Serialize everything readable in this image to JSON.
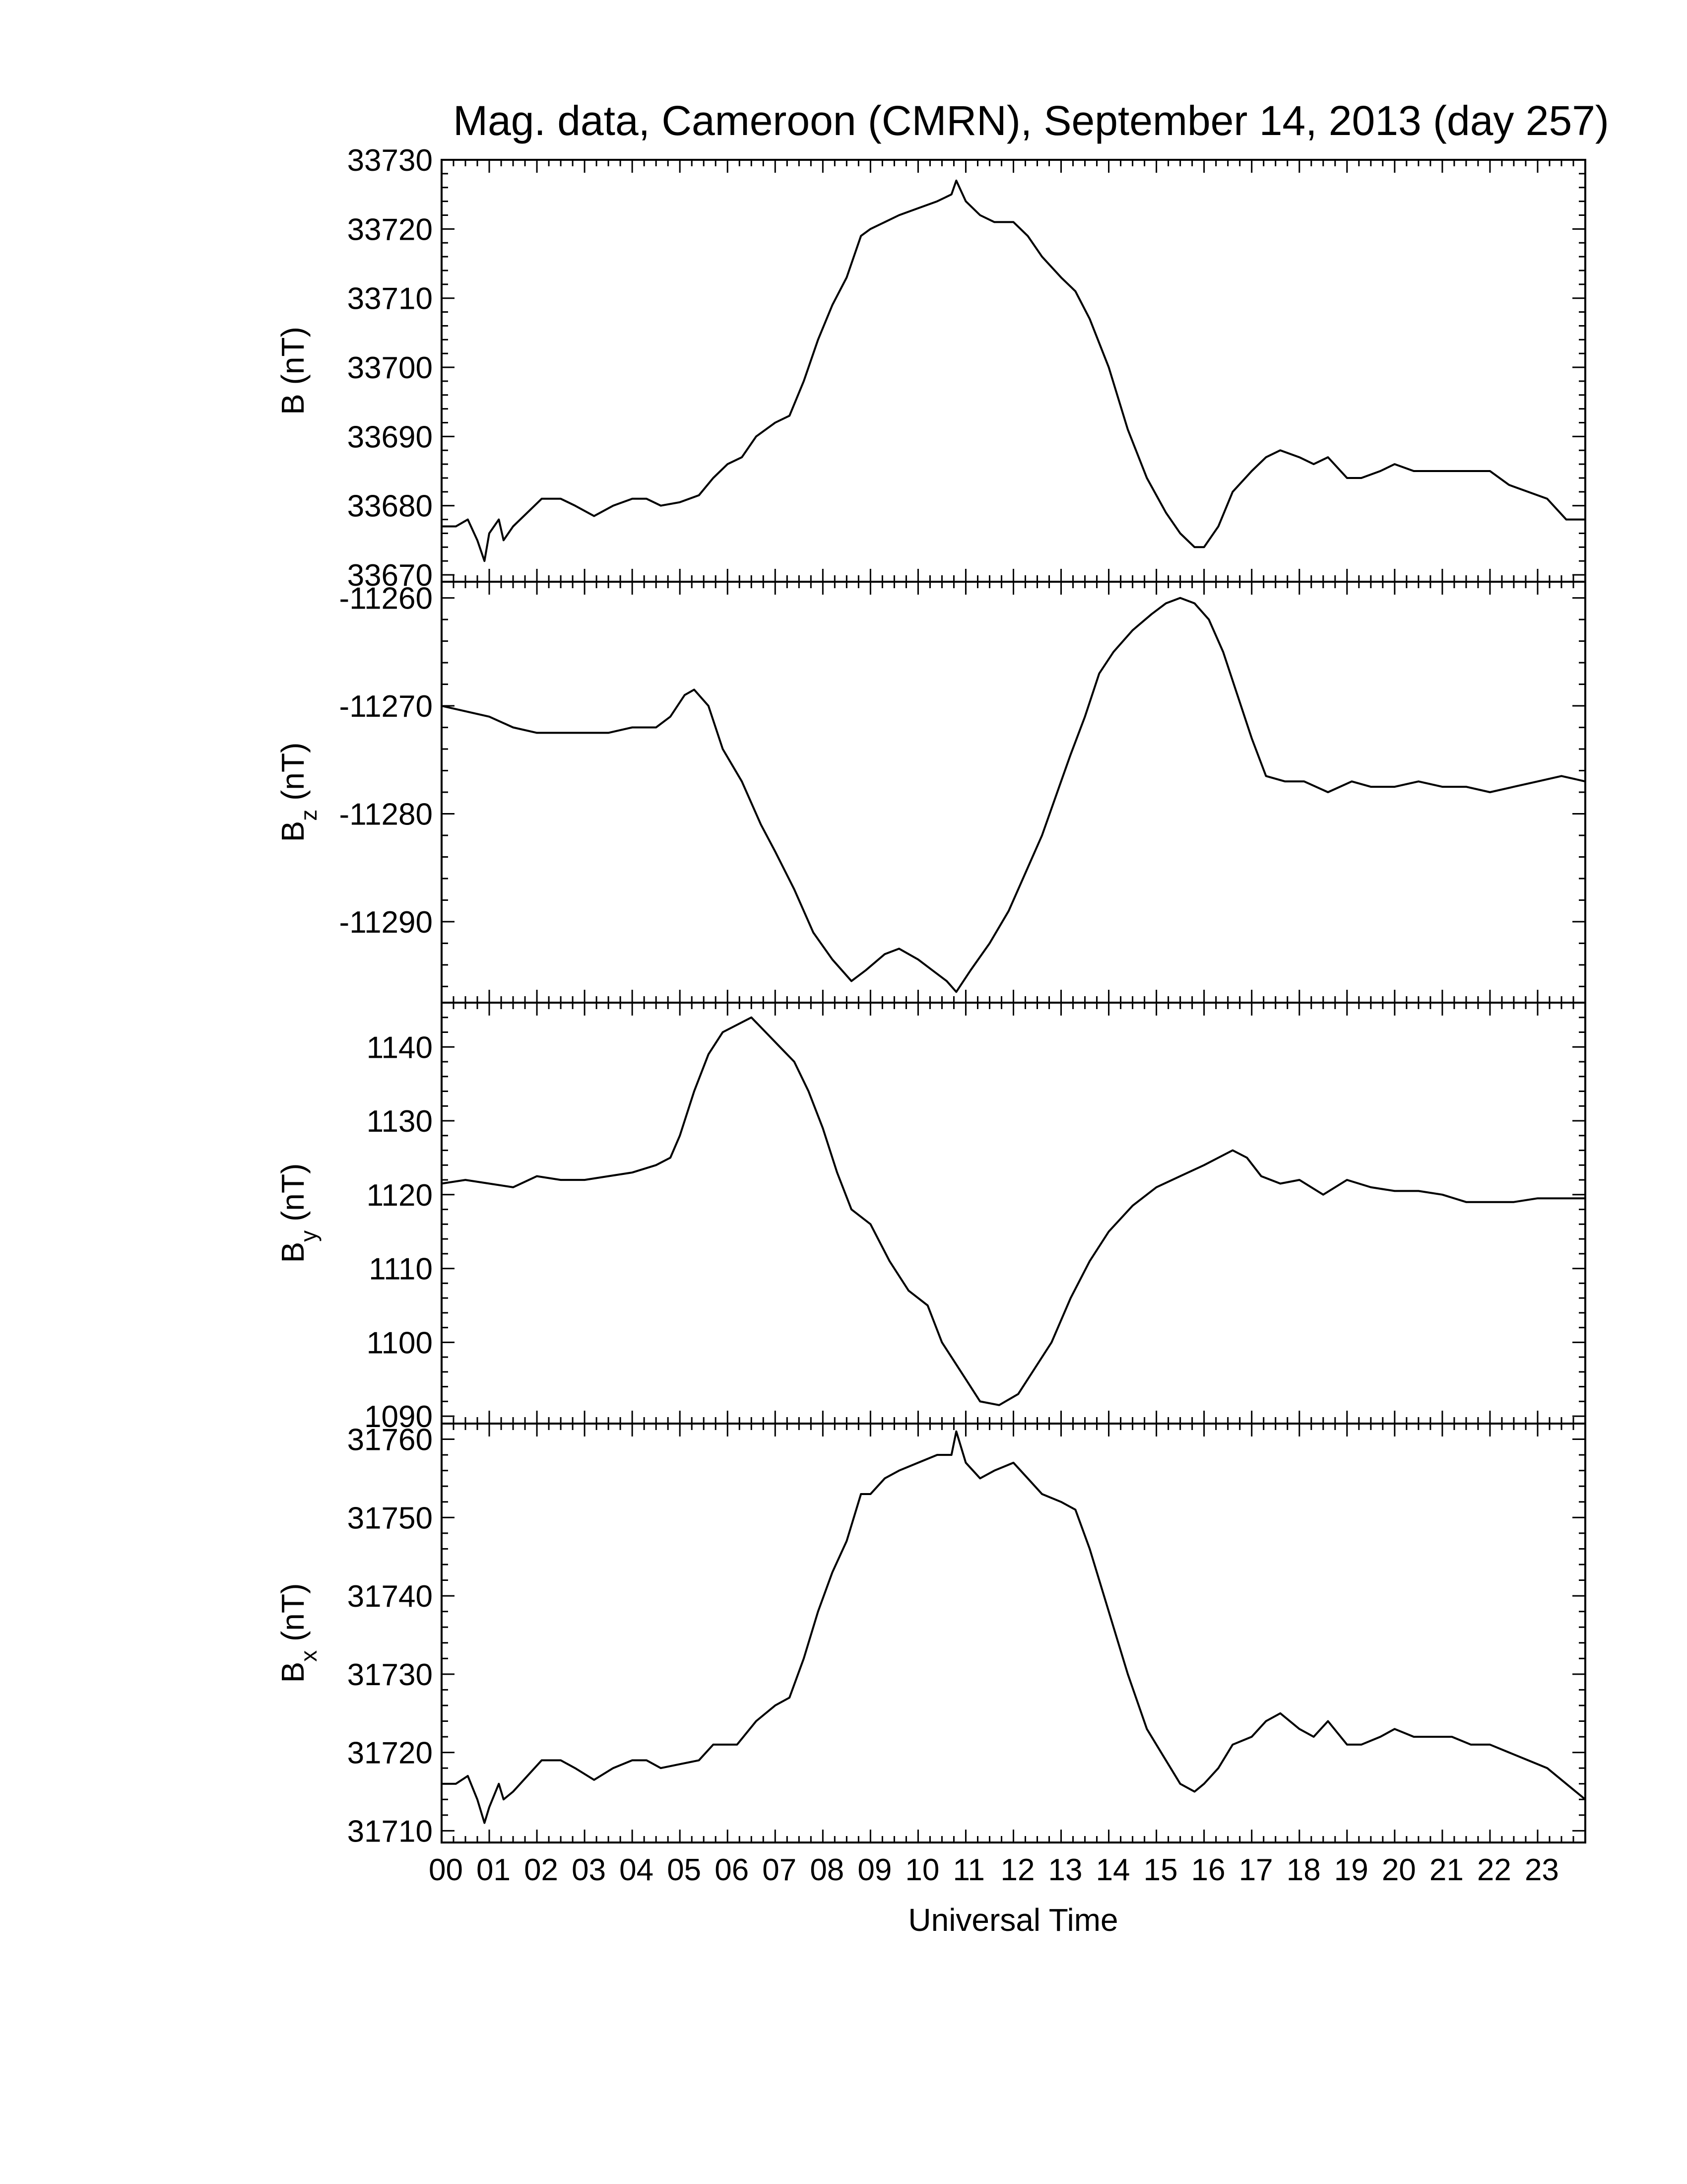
{
  "chart_data": {
    "type": "line",
    "title": "Mag. data, Cameroon (CMRN), September 14, 2013 (day 257)",
    "xlabel": "Universal Time",
    "x_unit": "hours (UT)",
    "xlim": [
      0,
      24
    ],
    "x_tick_labels": [
      "00",
      "01",
      "02",
      "03",
      "04",
      "05",
      "06",
      "07",
      "08",
      "09",
      "10",
      "11",
      "12",
      "13",
      "14",
      "15",
      "16",
      "17",
      "18",
      "19",
      "20",
      "21",
      "22",
      "23"
    ],
    "x_minor_ticks_per_hour": 4,
    "grid": false,
    "legend": "none",
    "line_color": "#000000",
    "panels": [
      {
        "id": "B",
        "ylabel_main": "B",
        "ylabel_sub": "",
        "ylabel_unit": "(nT)",
        "ylim": [
          33669,
          33730
        ],
        "yticks": [
          33670,
          33680,
          33690,
          33700,
          33710,
          33720,
          33730
        ],
        "points": [
          [
            0,
            33677
          ],
          [
            0.3,
            33677
          ],
          [
            0.55,
            33678
          ],
          [
            0.75,
            33675
          ],
          [
            0.9,
            33672
          ],
          [
            1.0,
            33676
          ],
          [
            1.2,
            33678
          ],
          [
            1.3,
            33675
          ],
          [
            1.5,
            33677
          ],
          [
            1.8,
            33679
          ],
          [
            2.1,
            33681
          ],
          [
            2.5,
            33681
          ],
          [
            2.8,
            33680
          ],
          [
            3.2,
            33678.5
          ],
          [
            3.6,
            33680
          ],
          [
            4.0,
            33681
          ],
          [
            4.3,
            33681
          ],
          [
            4.6,
            33680
          ],
          [
            5.0,
            33680.5
          ],
          [
            5.4,
            33681.5
          ],
          [
            5.7,
            33684
          ],
          [
            6.0,
            33686
          ],
          [
            6.3,
            33687
          ],
          [
            6.6,
            33690
          ],
          [
            7.0,
            33692
          ],
          [
            7.3,
            33693
          ],
          [
            7.6,
            33698
          ],
          [
            7.9,
            33704
          ],
          [
            8.2,
            33709
          ],
          [
            8.5,
            33713
          ],
          [
            8.8,
            33719
          ],
          [
            9.0,
            33720
          ],
          [
            9.3,
            33721
          ],
          [
            9.6,
            33722
          ],
          [
            10.0,
            33723
          ],
          [
            10.4,
            33724
          ],
          [
            10.7,
            33725
          ],
          [
            10.8,
            33727
          ],
          [
            11.0,
            33724
          ],
          [
            11.3,
            33722
          ],
          [
            11.6,
            33721
          ],
          [
            12.0,
            33721
          ],
          [
            12.3,
            33719
          ],
          [
            12.6,
            33716
          ],
          [
            13.0,
            33713
          ],
          [
            13.3,
            33711
          ],
          [
            13.6,
            33707
          ],
          [
            14.0,
            33700
          ],
          [
            14.4,
            33691
          ],
          [
            14.8,
            33684
          ],
          [
            15.2,
            33679
          ],
          [
            15.5,
            33676
          ],
          [
            15.8,
            33674
          ],
          [
            16.0,
            33674
          ],
          [
            16.3,
            33677
          ],
          [
            16.6,
            33682
          ],
          [
            17.0,
            33685
          ],
          [
            17.3,
            33687
          ],
          [
            17.6,
            33688
          ],
          [
            18.0,
            33687
          ],
          [
            18.3,
            33686
          ],
          [
            18.6,
            33687
          ],
          [
            19.0,
            33684
          ],
          [
            19.3,
            33684
          ],
          [
            19.7,
            33685
          ],
          [
            20.0,
            33686
          ],
          [
            20.4,
            33685
          ],
          [
            20.8,
            33685
          ],
          [
            21.2,
            33685
          ],
          [
            21.6,
            33685
          ],
          [
            22.0,
            33685
          ],
          [
            22.4,
            33683
          ],
          [
            22.8,
            33682
          ],
          [
            23.2,
            33681
          ],
          [
            23.6,
            33678
          ],
          [
            24.0,
            33678
          ]
        ]
      },
      {
        "id": "Bz",
        "ylabel_main": "B",
        "ylabel_sub": "z",
        "ylabel_unit": "(nT)",
        "ylim": [
          -11297.5,
          -11258.5
        ],
        "yticks": [
          -11290,
          -11280,
          -11270,
          -11260
        ],
        "points": [
          [
            0,
            -11270
          ],
          [
            0.5,
            -11270.5
          ],
          [
            1.0,
            -11271
          ],
          [
            1.5,
            -11272
          ],
          [
            2.0,
            -11272.5
          ],
          [
            2.5,
            -11272.5
          ],
          [
            3.0,
            -11272.5
          ],
          [
            3.5,
            -11272.5
          ],
          [
            4.0,
            -11272
          ],
          [
            4.5,
            -11272
          ],
          [
            4.8,
            -11271
          ],
          [
            5.1,
            -11269
          ],
          [
            5.3,
            -11268.5
          ],
          [
            5.6,
            -11270
          ],
          [
            5.9,
            -11274
          ],
          [
            6.3,
            -11277
          ],
          [
            6.7,
            -11281
          ],
          [
            7.0,
            -11283.5
          ],
          [
            7.4,
            -11287
          ],
          [
            7.8,
            -11291
          ],
          [
            8.2,
            -11293.5
          ],
          [
            8.6,
            -11295.5
          ],
          [
            8.9,
            -11294.5
          ],
          [
            9.3,
            -11293
          ],
          [
            9.6,
            -11292.5
          ],
          [
            10.0,
            -11293.5
          ],
          [
            10.3,
            -11294.5
          ],
          [
            10.6,
            -11295.5
          ],
          [
            10.8,
            -11296.5
          ],
          [
            11.1,
            -11294.5
          ],
          [
            11.5,
            -11292
          ],
          [
            11.9,
            -11289
          ],
          [
            12.3,
            -11285
          ],
          [
            12.6,
            -11282
          ],
          [
            13.0,
            -11277
          ],
          [
            13.2,
            -11274.5
          ],
          [
            13.5,
            -11271
          ],
          [
            13.8,
            -11267
          ],
          [
            14.1,
            -11265
          ],
          [
            14.5,
            -11263
          ],
          [
            14.9,
            -11261.5
          ],
          [
            15.2,
            -11260.5
          ],
          [
            15.5,
            -11260
          ],
          [
            15.8,
            -11260.5
          ],
          [
            16.1,
            -11262
          ],
          [
            16.4,
            -11265
          ],
          [
            16.7,
            -11269
          ],
          [
            17.0,
            -11273
          ],
          [
            17.3,
            -11276.5
          ],
          [
            17.7,
            -11277
          ],
          [
            18.1,
            -11277
          ],
          [
            18.6,
            -11278
          ],
          [
            19.1,
            -11277
          ],
          [
            19.5,
            -11277.5
          ],
          [
            20.0,
            -11277.5
          ],
          [
            20.5,
            -11277
          ],
          [
            21.0,
            -11277.5
          ],
          [
            21.5,
            -11277.5
          ],
          [
            22.0,
            -11278
          ],
          [
            22.5,
            -11277.5
          ],
          [
            23.0,
            -11277
          ],
          [
            23.5,
            -11276.5
          ],
          [
            24.0,
            -11277
          ]
        ]
      },
      {
        "id": "By",
        "ylabel_main": "B",
        "ylabel_sub": "y",
        "ylabel_unit": "(nT)",
        "ylim": [
          1089,
          1146
        ],
        "yticks": [
          1090,
          1100,
          1110,
          1120,
          1130,
          1140
        ],
        "points": [
          [
            0,
            1121.5
          ],
          [
            0.5,
            1122
          ],
          [
            1.0,
            1121.5
          ],
          [
            1.5,
            1121
          ],
          [
            2.0,
            1122.5
          ],
          [
            2.5,
            1122
          ],
          [
            3.0,
            1122
          ],
          [
            3.5,
            1122.5
          ],
          [
            4.0,
            1123
          ],
          [
            4.5,
            1124
          ],
          [
            4.8,
            1125
          ],
          [
            5.0,
            1128
          ],
          [
            5.3,
            1134
          ],
          [
            5.6,
            1139
          ],
          [
            5.9,
            1142
          ],
          [
            6.2,
            1143
          ],
          [
            6.5,
            1144
          ],
          [
            6.8,
            1142
          ],
          [
            7.1,
            1140
          ],
          [
            7.4,
            1138
          ],
          [
            7.7,
            1134
          ],
          [
            8.0,
            1129
          ],
          [
            8.3,
            1123
          ],
          [
            8.6,
            1118
          ],
          [
            9.0,
            1116
          ],
          [
            9.4,
            1111
          ],
          [
            9.8,
            1107
          ],
          [
            10.2,
            1105
          ],
          [
            10.5,
            1100
          ],
          [
            10.8,
            1097
          ],
          [
            11.0,
            1095
          ],
          [
            11.3,
            1092
          ],
          [
            11.7,
            1091.5
          ],
          [
            12.1,
            1093
          ],
          [
            12.4,
            1096
          ],
          [
            12.8,
            1100
          ],
          [
            13.2,
            1106
          ],
          [
            13.6,
            1111
          ],
          [
            14.0,
            1115
          ],
          [
            14.5,
            1118.5
          ],
          [
            15.0,
            1121
          ],
          [
            15.5,
            1122.5
          ],
          [
            16.0,
            1124
          ],
          [
            16.3,
            1125
          ],
          [
            16.6,
            1126
          ],
          [
            16.9,
            1125
          ],
          [
            17.2,
            1122.5
          ],
          [
            17.6,
            1121.5
          ],
          [
            18.0,
            1122
          ],
          [
            18.5,
            1120
          ],
          [
            19.0,
            1122
          ],
          [
            19.5,
            1121
          ],
          [
            20.0,
            1120.5
          ],
          [
            20.5,
            1120.5
          ],
          [
            21.0,
            1120
          ],
          [
            21.5,
            1119
          ],
          [
            22.0,
            1119
          ],
          [
            22.5,
            1119
          ],
          [
            23.0,
            1119.5
          ],
          [
            23.5,
            1119.5
          ],
          [
            24.0,
            1119.5
          ]
        ]
      },
      {
        "id": "Bx",
        "ylabel_main": "B",
        "ylabel_sub": "x",
        "ylabel_unit": "(nT)",
        "ylim": [
          31708.5,
          31762
        ],
        "yticks": [
          31710,
          31720,
          31730,
          31740,
          31750,
          31760
        ],
        "points": [
          [
            0,
            31716
          ],
          [
            0.3,
            31716
          ],
          [
            0.55,
            31717
          ],
          [
            0.75,
            31714
          ],
          [
            0.9,
            31711
          ],
          [
            1.0,
            31713
          ],
          [
            1.2,
            31716
          ],
          [
            1.3,
            31714
          ],
          [
            1.5,
            31715
          ],
          [
            1.8,
            31717
          ],
          [
            2.1,
            31719
          ],
          [
            2.5,
            31719
          ],
          [
            2.8,
            31718
          ],
          [
            3.2,
            31716.5
          ],
          [
            3.6,
            31718
          ],
          [
            4.0,
            31719
          ],
          [
            4.3,
            31719
          ],
          [
            4.6,
            31718
          ],
          [
            5.0,
            31718.5
          ],
          [
            5.4,
            31719
          ],
          [
            5.7,
            31721
          ],
          [
            6.0,
            31721
          ],
          [
            6.2,
            31721
          ],
          [
            6.6,
            31724
          ],
          [
            7.0,
            31726
          ],
          [
            7.3,
            31727
          ],
          [
            7.6,
            31732
          ],
          [
            7.9,
            31738
          ],
          [
            8.2,
            31743
          ],
          [
            8.5,
            31747
          ],
          [
            8.8,
            31753
          ],
          [
            9.0,
            31753
          ],
          [
            9.3,
            31755
          ],
          [
            9.6,
            31756
          ],
          [
            10.0,
            31757
          ],
          [
            10.4,
            31758
          ],
          [
            10.7,
            31758
          ],
          [
            10.8,
            31761
          ],
          [
            11.0,
            31757
          ],
          [
            11.3,
            31755
          ],
          [
            11.6,
            31756
          ],
          [
            12.0,
            31757
          ],
          [
            12.3,
            31755
          ],
          [
            12.6,
            31753
          ],
          [
            13.0,
            31752
          ],
          [
            13.3,
            31751
          ],
          [
            13.6,
            31746
          ],
          [
            14.0,
            31738
          ],
          [
            14.4,
            31730
          ],
          [
            14.8,
            31723
          ],
          [
            15.2,
            31719
          ],
          [
            15.5,
            31716
          ],
          [
            15.8,
            31715
          ],
          [
            16.0,
            31716
          ],
          [
            16.3,
            31718
          ],
          [
            16.6,
            31721
          ],
          [
            17.0,
            31722
          ],
          [
            17.3,
            31724
          ],
          [
            17.6,
            31725
          ],
          [
            18.0,
            31723
          ],
          [
            18.3,
            31722
          ],
          [
            18.6,
            31724
          ],
          [
            19.0,
            31721
          ],
          [
            19.3,
            31721
          ],
          [
            19.7,
            31722
          ],
          [
            20.0,
            31723
          ],
          [
            20.4,
            31722
          ],
          [
            20.8,
            31722
          ],
          [
            21.2,
            31722
          ],
          [
            21.6,
            31721
          ],
          [
            22.0,
            31721
          ],
          [
            22.4,
            31720
          ],
          [
            22.8,
            31719
          ],
          [
            23.2,
            31718
          ],
          [
            23.6,
            31716
          ],
          [
            24.0,
            31714
          ]
        ]
      }
    ]
  }
}
